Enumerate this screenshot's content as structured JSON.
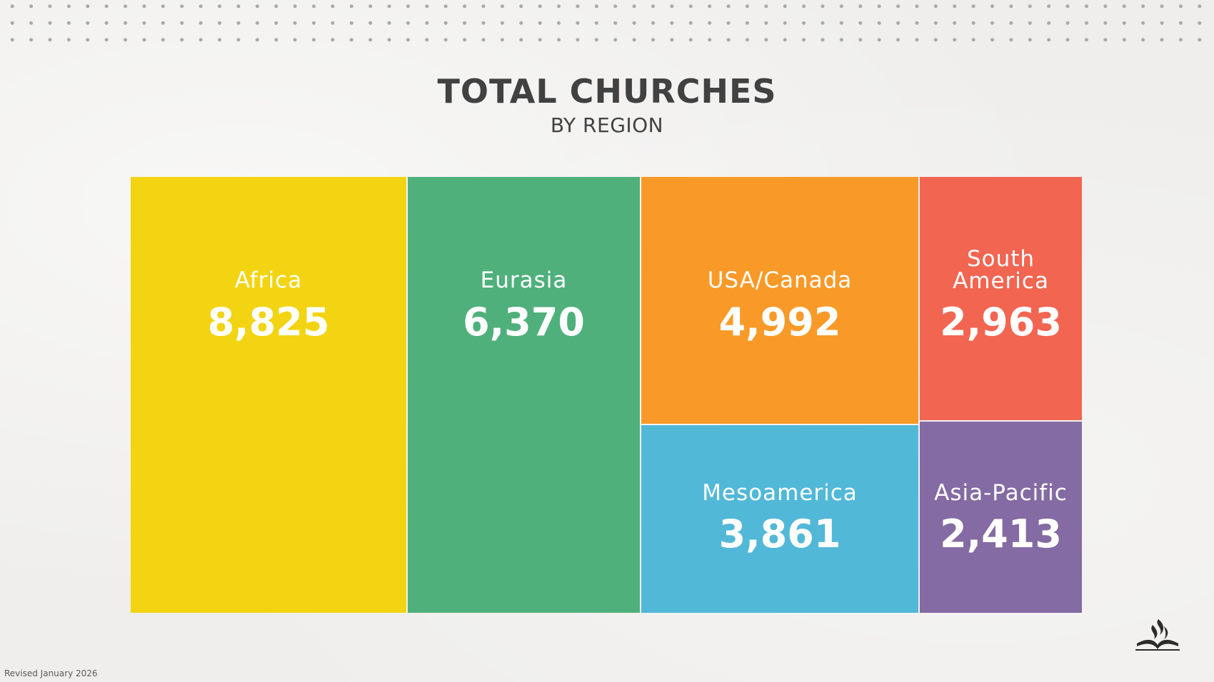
{
  "chart_data": {
    "type": "treemap",
    "title": "TOTAL CHURCHES",
    "subtitle": "BY REGION",
    "categories": [
      "Africa",
      "Eurasia",
      "USA/Canada",
      "South America",
      "Mesoamerica",
      "Asia-Pacific"
    ],
    "values": [
      8825,
      6370,
      4992,
      2963,
      3861,
      2413
    ],
    "value_labels": [
      "8,825",
      "6,370",
      "4,992",
      "2,963",
      "3,861",
      "2,413"
    ],
    "colors": [
      "#f2d412",
      "#4fb07c",
      "#f99a28",
      "#f26551",
      "#52b8d8",
      "#846ba3"
    ],
    "legend": "none",
    "grid": false
  },
  "footer": {
    "revised": "Revised January 2026"
  },
  "logo": {
    "icon": "flame-book-logo-icon"
  }
}
